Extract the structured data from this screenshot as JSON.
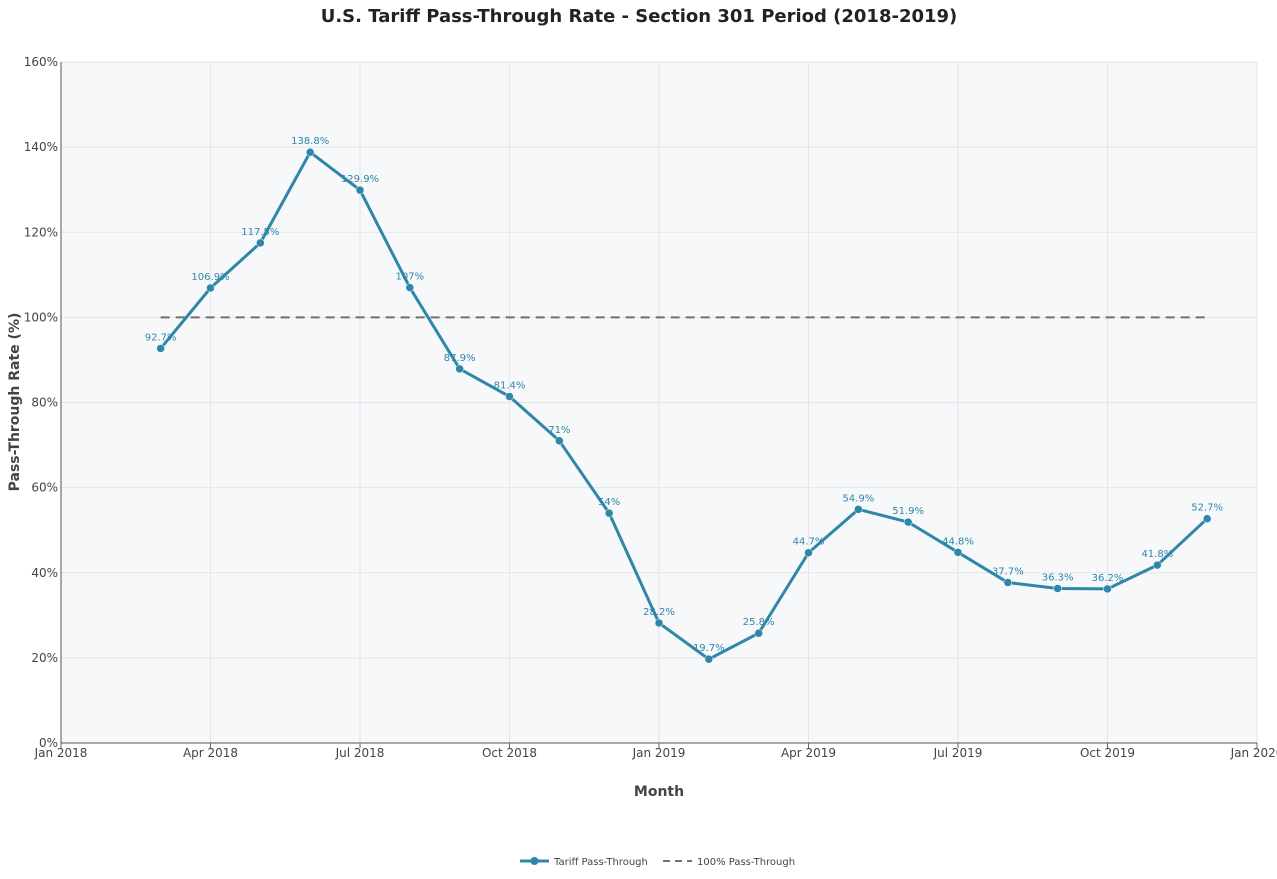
{
  "chart_data": {
    "type": "line",
    "title": "U.S. Tariff Pass-Through Rate - Section 301 Period (2018-2019)",
    "xlabel": "Month",
    "ylabel": "Pass-Through Rate (%)",
    "ylim": [
      0,
      160
    ],
    "yticks": [
      0,
      20,
      40,
      60,
      80,
      100,
      120,
      140,
      160
    ],
    "ytick_labels": [
      "0%",
      "20%",
      "40%",
      "60%",
      "80%",
      "100%",
      "120%",
      "140%",
      "160%"
    ],
    "xlim_months": [
      0,
      24
    ],
    "xticks": [
      {
        "month": 0,
        "label": "Jan 2018"
      },
      {
        "month": 3,
        "label": "Apr 2018"
      },
      {
        "month": 6,
        "label": "Jul 2018"
      },
      {
        "month": 9,
        "label": "Oct 2018"
      },
      {
        "month": 12,
        "label": "Jan 2019"
      },
      {
        "month": 15,
        "label": "Apr 2019"
      },
      {
        "month": 18,
        "label": "Jul 2019"
      },
      {
        "month": 21,
        "label": "Oct 2019"
      },
      {
        "month": 24,
        "label": "Jan 2020"
      }
    ],
    "grid": true,
    "legend_position": "bottom-center",
    "series": [
      {
        "name": "Tariff Pass-Through",
        "style": "line+markers",
        "color": "#2e86a8",
        "x_months": [
          2,
          3,
          4,
          5,
          6,
          7,
          8,
          9,
          10,
          11,
          12,
          13,
          14,
          15,
          16,
          17,
          18,
          19,
          20,
          21,
          22,
          23
        ],
        "values": [
          92.7,
          106.9,
          117.5,
          138.8,
          129.9,
          107,
          87.9,
          81.4,
          71,
          54,
          28.2,
          19.7,
          25.8,
          44.7,
          54.9,
          51.9,
          44.8,
          37.7,
          36.3,
          36.2,
          41.8,
          52.7
        ],
        "labels": [
          "92.7%",
          "106.9%",
          "117.5%",
          "138.8%",
          "129.9%",
          "107%",
          "87.9%",
          "81.4%",
          "71%",
          "54%",
          "28.2%",
          "19.7%",
          "25.8%",
          "44.7%",
          "54.9%",
          "51.9%",
          "44.8%",
          "37.7%",
          "36.3%",
          "36.2%",
          "41.8%",
          "52.7%"
        ]
      },
      {
        "name": "100% Pass-Through",
        "style": "dashed",
        "color": "#707070",
        "x_months": [
          2,
          23
        ],
        "values": [
          100,
          100
        ]
      }
    ]
  }
}
